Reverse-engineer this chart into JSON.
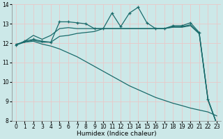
{
  "xlabel": "Humidex (Indice chaleur)",
  "bg_color": "#cce8e8",
  "grid_color": "#e8c8c8",
  "line_color": "#1a6b6b",
  "xlim": [
    -0.5,
    23.5
  ],
  "ylim": [
    8,
    14
  ],
  "yticks": [
    8,
    9,
    10,
    11,
    12,
    13,
    14
  ],
  "xticks": [
    0,
    1,
    2,
    3,
    4,
    5,
    6,
    7,
    8,
    9,
    10,
    11,
    12,
    13,
    14,
    15,
    16,
    17,
    18,
    19,
    20,
    21,
    22,
    23
  ],
  "line1_x": [
    0,
    1,
    2,
    3,
    4,
    5,
    6,
    7,
    8,
    9,
    10,
    11,
    12,
    13,
    14,
    15,
    16,
    17,
    18,
    19,
    20,
    21,
    22,
    23
  ],
  "line1_y": [
    11.9,
    12.1,
    12.2,
    12.1,
    12.05,
    13.1,
    13.1,
    13.05,
    13.0,
    12.75,
    12.75,
    13.55,
    12.85,
    13.55,
    13.85,
    13.05,
    12.75,
    12.75,
    12.9,
    12.9,
    13.05,
    12.55,
    9.1,
    7.85
  ],
  "line2_x": [
    0,
    1,
    2,
    3,
    4,
    5,
    6,
    7,
    8,
    9,
    10,
    11,
    12,
    13,
    14,
    15,
    16,
    17,
    18,
    19,
    20,
    21,
    22,
    23
  ],
  "line2_y": [
    11.9,
    12.1,
    12.4,
    12.2,
    12.4,
    12.75,
    12.8,
    12.75,
    12.75,
    12.75,
    12.75,
    12.75,
    12.75,
    12.75,
    12.75,
    12.75,
    12.75,
    12.75,
    12.85,
    12.85,
    12.95,
    12.5,
    9.1,
    7.85
  ],
  "line3_x": [
    0,
    1,
    2,
    3,
    4,
    5,
    6,
    7,
    8,
    9,
    10,
    11,
    12,
    13,
    14,
    15,
    16,
    17,
    18,
    19,
    20,
    21,
    22,
    23
  ],
  "line3_y": [
    11.9,
    12.05,
    12.15,
    12.05,
    12.05,
    12.35,
    12.4,
    12.5,
    12.55,
    12.6,
    12.75,
    12.75,
    12.75,
    12.75,
    12.75,
    12.75,
    12.75,
    12.75,
    12.82,
    12.82,
    12.9,
    12.48,
    9.05,
    7.85
  ],
  "line4_x": [
    0,
    1,
    2,
    3,
    4,
    5,
    6,
    7,
    8,
    9,
    10,
    11,
    12,
    13,
    14,
    15,
    16,
    17,
    18,
    19,
    20,
    21,
    22,
    23
  ],
  "line4_y": [
    11.95,
    12.05,
    12.1,
    11.95,
    11.85,
    11.7,
    11.5,
    11.3,
    11.05,
    10.8,
    10.55,
    10.3,
    10.05,
    9.8,
    9.6,
    9.4,
    9.2,
    9.05,
    8.9,
    8.78,
    8.65,
    8.55,
    8.45,
    8.25
  ]
}
